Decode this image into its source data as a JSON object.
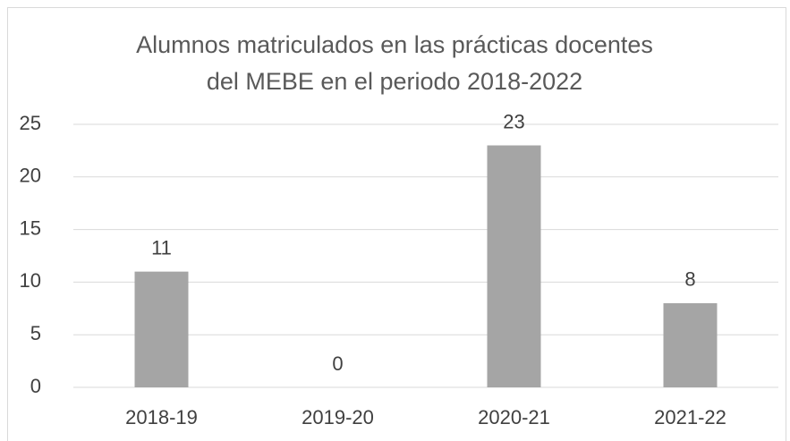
{
  "chart_data": {
    "type": "bar",
    "title": "Alumnos matriculados en las prácticas docentes del MEBE en el periodo 2018-2022",
    "categories": [
      "2018-19",
      "2019-20",
      "2020-21",
      "2021-22"
    ],
    "values": [
      11,
      0,
      23,
      8
    ],
    "color": "#a5a5a5",
    "ylim": [
      0,
      25
    ],
    "yticks": [
      0,
      5,
      10,
      15,
      20,
      25
    ],
    "grid": true
  }
}
